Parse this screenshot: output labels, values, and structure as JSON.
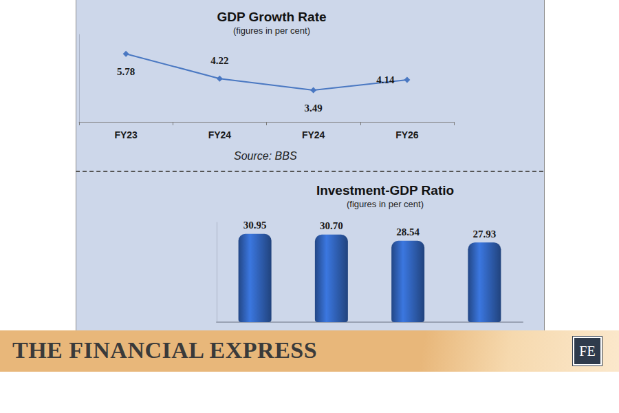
{
  "chart_data": [
    {
      "type": "line",
      "title": "GDP Growth Rate",
      "subtitle": "(figures in per cent)",
      "source": "Source: BBS",
      "categories": [
        "FY23",
        "FY24",
        "FY24",
        "FY26"
      ],
      "values": [
        5.78,
        4.22,
        3.49,
        4.14
      ],
      "color": "#4a78c2",
      "marker": "diamond",
      "ylim": [
        1.5,
        7
      ],
      "data_labels": true,
      "tick_labels": "x",
      "grid": false
    },
    {
      "type": "bar",
      "title": "Investment-GDP Ratio",
      "subtitle": "(figures in per cent)",
      "categories": [
        null,
        null,
        null,
        null
      ],
      "values": [
        30.95,
        30.7,
        28.54,
        27.93
      ],
      "value_labels": [
        "30.95",
        "30.70",
        "28.54",
        "27.93"
      ],
      "color": "#2f5fb3",
      "ylim": [
        0,
        35
      ],
      "data_labels": true,
      "tick_labels": false,
      "grid": false
    }
  ],
  "banner": {
    "title": "THE FINANCIAL EXPRESS",
    "logo": "FE"
  }
}
